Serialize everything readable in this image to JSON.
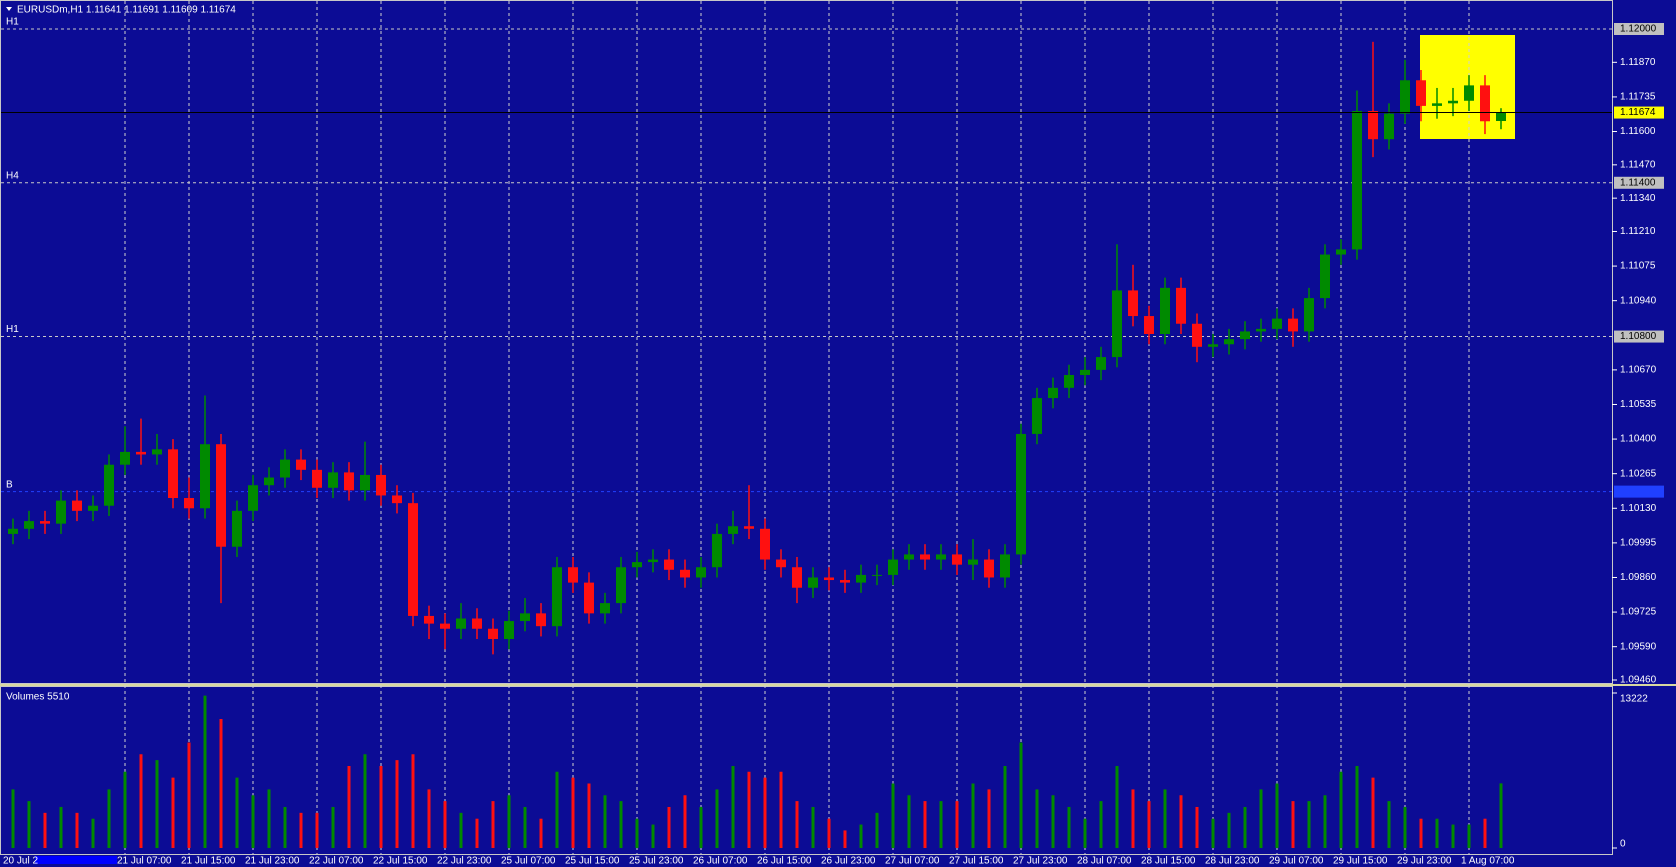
{
  "chart_data": {
    "type": "candlestick",
    "title": "EURUSDm,H1  1.11641 1.11691 1.11609 1.11674",
    "categories": [
      "20 Jul 2",
      null,
      null,
      null,
      null,
      null,
      null,
      "21 Jul 07:00",
      null,
      null,
      null,
      "21 Jul 15:00",
      null,
      null,
      null,
      "21 Jul 23:00",
      null,
      null,
      null,
      "22 Jul 07:00",
      null,
      null,
      null,
      "22 Jul 15:00",
      null,
      null,
      null,
      "22 Jul 23:00",
      null,
      null,
      null,
      "25 Jul 07:00",
      null,
      null,
      null,
      "25 Jul 15:00",
      null,
      null,
      null,
      "25 Jul 23:00",
      null,
      null,
      null,
      "26 Jul 07:00",
      null,
      null,
      null,
      "26 Jul 15:00",
      null,
      null,
      null,
      "26 Jul 23:00",
      null,
      null,
      null,
      "27 Jul 07:00",
      null,
      null,
      null,
      "27 Jul 15:00",
      null,
      null,
      null,
      "27 Jul 23:00",
      null,
      null,
      null,
      "28 Jul 07:00",
      null,
      null,
      null,
      "28 Jul 15:00",
      null,
      null,
      null,
      "28 Jul 23:00",
      null,
      null,
      null,
      "29 Jul 07:00",
      null,
      null,
      null,
      "29 Jul 15:00",
      null,
      null,
      null,
      "29 Jul 23:00",
      null,
      null,
      null,
      "1 Aug 07:00",
      null,
      null
    ],
    "candles": [
      [
        1.1003,
        1.1009,
        1.0999,
        1.1005
      ],
      [
        1.1005,
        1.1012,
        1.1001,
        1.1008
      ],
      [
        1.1008,
        1.1012,
        1.1003,
        1.1007
      ],
      [
        1.1007,
        1.102,
        1.1003,
        1.1016
      ],
      [
        1.1016,
        1.102,
        1.1008,
        1.1012
      ],
      [
        1.1012,
        1.1018,
        1.1008,
        1.1014
      ],
      [
        1.1014,
        1.1034,
        1.101,
        1.103
      ],
      [
        1.103,
        1.1045,
        1.1026,
        1.1035
      ],
      [
        1.1035,
        1.1048,
        1.103,
        1.1034
      ],
      [
        1.1034,
        1.1042,
        1.103,
        1.1036
      ],
      [
        1.1036,
        1.104,
        1.1013,
        1.1017
      ],
      [
        1.1017,
        1.1025,
        1.1009,
        1.1013
      ],
      [
        1.1013,
        1.1057,
        1.1009,
        1.1038
      ],
      [
        1.1038,
        1.1042,
        1.0976,
        1.0998
      ],
      [
        1.0998,
        1.1016,
        1.0994,
        1.1012
      ],
      [
        1.1012,
        1.1026,
        1.1008,
        1.1022
      ],
      [
        1.1022,
        1.1029,
        1.1018,
        1.1025
      ],
      [
        1.1025,
        1.1036,
        1.1021,
        1.1032
      ],
      [
        1.1032,
        1.1036,
        1.1024,
        1.1028
      ],
      [
        1.1028,
        1.1032,
        1.1017,
        1.1021
      ],
      [
        1.1021,
        1.1031,
        1.1017,
        1.1027
      ],
      [
        1.1027,
        1.1031,
        1.1016,
        1.102
      ],
      [
        1.102,
        1.1039,
        1.1016,
        1.1026
      ],
      [
        1.1026,
        1.103,
        1.1014,
        1.1018
      ],
      [
        1.1018,
        1.1022,
        1.1011,
        1.1015
      ],
      [
        1.1015,
        1.1019,
        1.0967,
        1.0971
      ],
      [
        1.0971,
        1.0975,
        1.0962,
        1.0968
      ],
      [
        1.0968,
        1.0972,
        1.0958,
        1.0966
      ],
      [
        1.0966,
        1.0976,
        1.0962,
        1.097
      ],
      [
        1.097,
        1.0974,
        1.0962,
        1.0966
      ],
      [
        1.0966,
        1.097,
        1.0956,
        1.0962
      ],
      [
        1.0962,
        1.0973,
        1.0958,
        1.0969
      ],
      [
        1.0969,
        1.0978,
        1.0965,
        1.0972
      ],
      [
        1.0972,
        1.0976,
        1.0963,
        1.0967
      ],
      [
        1.0967,
        1.0994,
        1.0963,
        1.099
      ],
      [
        1.099,
        1.0994,
        1.098,
        1.0984
      ],
      [
        1.0984,
        1.0988,
        1.0968,
        1.0972
      ],
      [
        1.0972,
        1.098,
        1.0968,
        1.0976
      ],
      [
        1.0976,
        1.0994,
        1.0972,
        1.099
      ],
      [
        1.099,
        1.0996,
        1.0986,
        1.0992
      ],
      [
        1.0992,
        1.0997,
        1.0988,
        1.0993
      ],
      [
        1.0993,
        1.0997,
        1.0985,
        1.0989
      ],
      [
        1.0989,
        1.0993,
        1.0982,
        1.0986
      ],
      [
        1.0986,
        1.0994,
        1.0982,
        1.099
      ],
      [
        1.099,
        1.1007,
        1.0986,
        1.1003
      ],
      [
        1.1003,
        1.1012,
        1.0999,
        1.1006
      ],
      [
        1.1006,
        1.1022,
        1.1001,
        1.1005
      ],
      [
        1.1005,
        1.1009,
        1.0989,
        1.0993
      ],
      [
        1.0993,
        1.0997,
        1.0986,
        1.099
      ],
      [
        1.099,
        1.0994,
        1.0976,
        1.0982
      ],
      [
        1.0982,
        1.099,
        1.0978,
        1.0986
      ],
      [
        1.0986,
        1.099,
        1.0981,
        1.0985
      ],
      [
        1.0985,
        1.0989,
        1.098,
        1.0984
      ],
      [
        1.0984,
        1.0991,
        1.098,
        1.0987
      ],
      [
        1.0987,
        1.0991,
        1.0983,
        1.0987
      ],
      [
        1.0987,
        1.0997,
        1.0983,
        1.0993
      ],
      [
        1.0993,
        1.0999,
        1.0989,
        1.0995
      ],
      [
        1.0995,
        1.0999,
        1.0989,
        1.0993
      ],
      [
        1.0993,
        1.0999,
        1.0989,
        1.0995
      ],
      [
        1.0995,
        1.0999,
        1.0987,
        1.0991
      ],
      [
        1.0991,
        1.1001,
        1.0985,
        1.0993
      ],
      [
        1.0993,
        1.0997,
        1.0982,
        1.0986
      ],
      [
        1.0986,
        1.0999,
        1.0982,
        1.0995
      ],
      [
        1.0995,
        1.1046,
        1.0991,
        1.1042
      ],
      [
        1.1042,
        1.106,
        1.1038,
        1.1056
      ],
      [
        1.1056,
        1.1064,
        1.1052,
        1.106
      ],
      [
        1.106,
        1.1069,
        1.1056,
        1.1065
      ],
      [
        1.1065,
        1.1072,
        1.1061,
        1.1067
      ],
      [
        1.1067,
        1.1076,
        1.1063,
        1.1072
      ],
      [
        1.1072,
        1.1116,
        1.1068,
        1.1098
      ],
      [
        1.1098,
        1.1108,
        1.1084,
        1.1088
      ],
      [
        1.1088,
        1.1092,
        1.1077,
        1.1081
      ],
      [
        1.1081,
        1.1103,
        1.1077,
        1.1099
      ],
      [
        1.1099,
        1.1103,
        1.1081,
        1.1085
      ],
      [
        1.1085,
        1.1089,
        1.107,
        1.1076
      ],
      [
        1.1076,
        1.1081,
        1.1072,
        1.1077
      ],
      [
        1.1077,
        1.1083,
        1.1073,
        1.1079
      ],
      [
        1.1079,
        1.1086,
        1.1075,
        1.1082
      ],
      [
        1.1082,
        1.1087,
        1.1078,
        1.1083
      ],
      [
        1.1083,
        1.1091,
        1.1079,
        1.1087
      ],
      [
        1.1087,
        1.1091,
        1.1076,
        1.1082
      ],
      [
        1.1082,
        1.1099,
        1.1078,
        1.1095
      ],
      [
        1.1095,
        1.1116,
        1.1091,
        1.1112
      ],
      [
        1.1112,
        1.1118,
        1.1108,
        1.1114
      ],
      [
        1.1114,
        1.1176,
        1.111,
        1.1168
      ],
      [
        1.1168,
        1.1195,
        1.115,
        1.1157
      ],
      [
        1.1157,
        1.1171,
        1.1153,
        1.1167
      ],
      [
        1.1167,
        1.1188,
        1.1163,
        1.118
      ],
      [
        1.118,
        1.1184,
        1.1164,
        1.117
      ],
      [
        1.117,
        1.1177,
        1.1165,
        1.1171
      ],
      [
        1.1171,
        1.1177,
        1.1166,
        1.1172
      ],
      [
        1.1172,
        1.1182,
        1.1168,
        1.1178
      ],
      [
        1.1178,
        1.1182,
        1.1159,
        1.1164
      ],
      [
        1.11641,
        1.11691,
        1.11609,
        1.11674
      ]
    ],
    "up_color": "#008a00",
    "down_color": "#ff1010",
    "ylim": [
      1.0946,
      1.12
    ],
    "yticks": [
      {
        "value": 1.1187,
        "label": "1.11870"
      },
      1.11735,
      {
        "value": 1.116,
        "label": "1.11600"
      },
      {
        "value": 1.1147,
        "label": "1.11470"
      },
      {
        "value": 1.1134,
        "label": "1.11340"
      },
      {
        "value": 1.1121,
        "label": "1.11210"
      },
      1.11075,
      {
        "value": 1.1094,
        "label": "1.10940"
      },
      {
        "value": 1.1067,
        "label": "1.10670"
      },
      1.10535,
      {
        "value": 1.104,
        "label": "1.10400"
      },
      1.10265,
      {
        "value": 1.1013,
        "label": "1.10130"
      },
      1.09995,
      {
        "value": 1.0986,
        "label": "1.09860"
      },
      1.09725,
      {
        "value": 1.0959,
        "label": "1.09590"
      },
      {
        "value": 1.0946,
        "label": "1.09460"
      }
    ],
    "grid": "vertical",
    "levels": [
      {
        "label": "H1",
        "value": 1.12,
        "axis_label": "1.12000",
        "color": "#c8c8c8"
      },
      {
        "label": "H4",
        "value": 1.114,
        "axis_label": "1.11400",
        "color": "#c8c8c8"
      },
      {
        "label": "H1",
        "value": 1.108,
        "axis_label": "1.10800",
        "color": "#c8c8c8"
      },
      {
        "label": "B",
        "value": 1.10195,
        "color": "#2040ff"
      }
    ],
    "current_price": 1.11674,
    "volume": {
      "title": "Volumes 5510",
      "values": [
        5000,
        4000,
        3000,
        3500,
        3000,
        2500,
        5000,
        6500,
        8000,
        7500,
        6000,
        9000,
        13000,
        11000,
        6000,
        4500,
        5000,
        3500,
        3000,
        3000,
        3500,
        7000,
        8000,
        7000,
        7500,
        8000,
        5000,
        4000,
        3000,
        2500,
        4000,
        4500,
        3500,
        2500,
        6500,
        6000,
        5500,
        4500,
        4000,
        2500,
        2000,
        3500,
        4500,
        3500,
        5000,
        7000,
        6500,
        6000,
        6500,
        4000,
        3500,
        2500,
        1500,
        2000,
        3000,
        5500,
        4500,
        4000,
        4000,
        4000,
        5500,
        5000,
        7000,
        9000,
        5000,
        4500,
        3500,
        2500,
        4000,
        7000,
        5000,
        4000,
        5000,
        4500,
        3500,
        2500,
        3000,
        3500,
        5000,
        5500,
        4000,
        4000,
        4500,
        6500,
        7000,
        6000,
        4000,
        3500,
        2500,
        2500,
        2000,
        2000,
        2500,
        5510
      ],
      "ylim": [
        0,
        13222
      ],
      "yticks": [
        0,
        13222
      ]
    }
  }
}
